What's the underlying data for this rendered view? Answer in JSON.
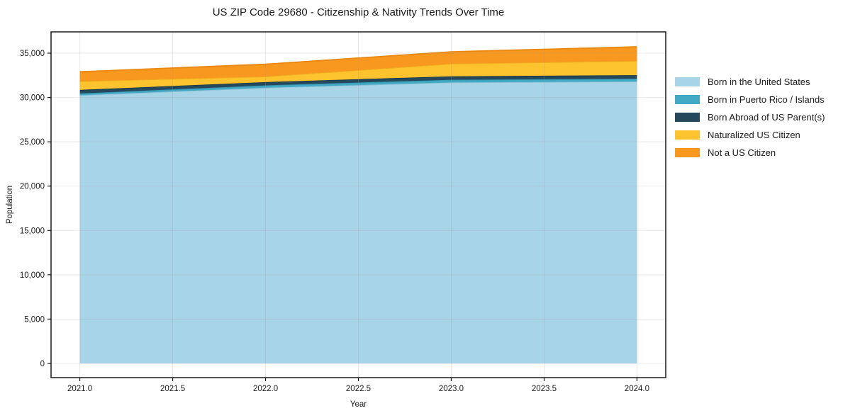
{
  "chart_data": {
    "type": "area",
    "stacked": true,
    "title": "US ZIP Code 29680 - Citizenship & Nativity Trends Over Time",
    "xlabel": "Year",
    "ylabel": "Population",
    "x": [
      2021,
      2022,
      2023,
      2024
    ],
    "series": [
      {
        "name": "Born in the United States",
        "color": "#a8d4e8",
        "edge_color": "#8cc1d9",
        "values": [
          30250,
          31100,
          31700,
          31800
        ]
      },
      {
        "name": "Born in Puerto Rico / Islands",
        "color": "#41a9c4",
        "edge_color": "#3694ad",
        "values": [
          210,
          270,
          300,
          320
        ]
      },
      {
        "name": "Born Abroad of US Parent(s)",
        "color": "#25485c",
        "edge_color": "#1d3a4b",
        "values": [
          400,
          370,
          390,
          400
        ]
      },
      {
        "name": "Naturalized US Citizen",
        "color": "#fdc32e",
        "edge_color": "#eeb120",
        "values": [
          960,
          620,
          1410,
          1600
        ]
      },
      {
        "name": "Not a US Citizen",
        "color": "#f8981f",
        "edge_color": "#e98810",
        "values": [
          1080,
          1390,
          1350,
          1600
        ]
      }
    ],
    "x_ticks": [
      2021.0,
      2021.5,
      2022.0,
      2022.5,
      2023.0,
      2023.5,
      2024.0
    ],
    "x_tick_labels": [
      "2021.0",
      "2021.5",
      "2022.0",
      "2022.5",
      "2023.0",
      "2023.5",
      "2024.0"
    ],
    "y_ticks": [
      0,
      5000,
      10000,
      15000,
      20000,
      25000,
      30000,
      35000
    ],
    "y_tick_labels": [
      "0",
      "5,000",
      "10,000",
      "15,000",
      "20,000",
      "25,000",
      "30,000",
      "35,000"
    ],
    "xlim": [
      2020.845,
      2024.155
    ],
    "ylim": [
      -1600,
      37400
    ],
    "grid": true,
    "legend_position": "right",
    "axis_color": "#1a1a1a",
    "grid_color": "#999999",
    "background_color": "#ffffff"
  }
}
